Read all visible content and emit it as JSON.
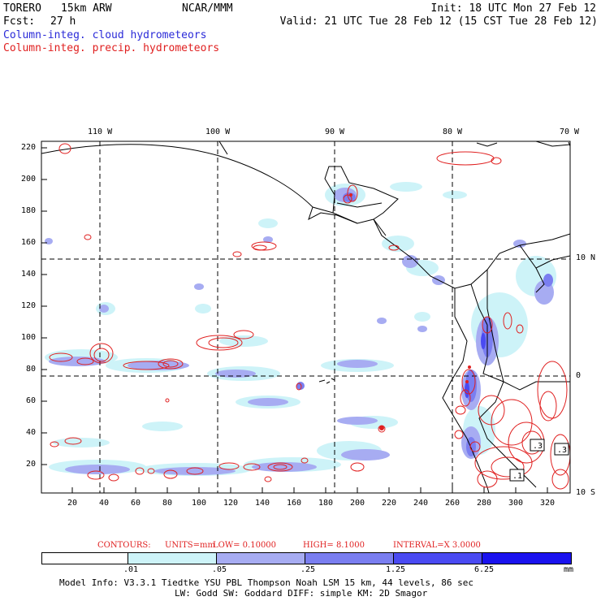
{
  "header": {
    "model": "TORERO",
    "resolution": "15km ARW",
    "org": "NCAR/MMM",
    "init": "Init: 18 UTC Mon 27 Feb 12",
    "fcst_label": "Fcst:",
    "fcst_value": "27 h",
    "valid": "Valid: 21 UTC Tue 28 Feb 12 (15 CST Tue 28 Feb 12)",
    "line_cloud": "Column-integ. cloud hydrometeors",
    "line_precip": "Column-integ. precip. hydrometeors"
  },
  "colors": {
    "cloud_text": "#2a2ad8",
    "precip_text": "#e02020",
    "precip_contour": "#e02020",
    "land": "#000000",
    "grid": "#000000",
    "shade_1": "#ffffff",
    "shade_2": "#cdf3f8",
    "shade_3": "#a7acf2",
    "shade_4": "#7a7ef0",
    "shade_5": "#4a4af2",
    "shade_6": "#1a12ee"
  },
  "map": {
    "top_lon_labels": [
      "110 W",
      "100 W",
      "90 W",
      "80 W",
      "70 W"
    ],
    "right_lat_labels": [
      "10 N",
      "0",
      "10 S"
    ],
    "left_y_ticks": [
      "220",
      "200",
      "180",
      "160",
      "140",
      "120",
      "100",
      "80",
      "60",
      "40",
      "20"
    ],
    "bottom_x_ticks": [
      "20",
      "40",
      "60",
      "80",
      "100",
      "120",
      "140",
      "160",
      "180",
      "200",
      "220",
      "240",
      "260",
      "280",
      "300",
      "320"
    ]
  },
  "contour_info": {
    "label": "CONTOURS:",
    "units": "UNITS=mm",
    "low": "LOW= 0.10000",
    "high": "HIGH=  8.1000",
    "interval": "INTERVAL=X  3.0000"
  },
  "legend": {
    "thresholds": [
      ".01",
      ".05",
      ".25",
      "1.25",
      "6.25"
    ],
    "unit": "mm"
  },
  "model_info": {
    "line1": "Model Info: V3.3.1    Tiedtke YSU PBL  Thompson    Noah LSM  15 km,   44 levels,   86 sec",
    "line2": "LW: Godd SW: Goddard DIFF: simple KM: 2D Smagor"
  },
  "contour_labels": [
    ".3",
    ".3",
    ".1"
  ]
}
